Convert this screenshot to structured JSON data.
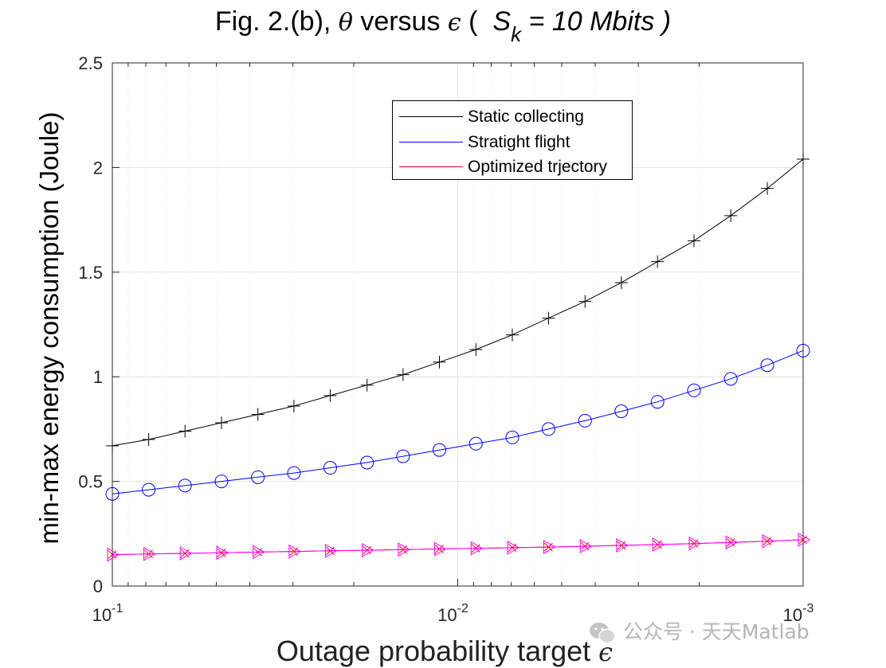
{
  "chart_data": {
    "type": "line",
    "title": {
      "prefix": "Fig. 2.(b), ",
      "theta": "θ",
      "mid": " versus ",
      "epsilon": "ϵ",
      "open": " (  ",
      "s": "S",
      "sub": "k",
      "rest": " = 10 Mbits )"
    },
    "xlabel": {
      "text": "Outage probability target ",
      "symbol": "ϵ"
    },
    "ylabel": "min-max energy consumption (Joule)",
    "xscale": "log",
    "xlim": [
      0.1,
      0.001
    ],
    "x_reversed": true,
    "ylim": [
      0,
      2.5
    ],
    "yticks": [
      0,
      0.5,
      1,
      1.5,
      2,
      2.5
    ],
    "ytick_labels": [
      "0",
      "0.5",
      "1",
      "1.5",
      "2",
      "2.5"
    ],
    "xticks": [
      {
        "value": 0.1,
        "base": "10",
        "exp": "-1"
      },
      {
        "value": 0.01,
        "base": "10",
        "exp": "-2"
      },
      {
        "value": 0.001,
        "base": "10",
        "exp": "-3"
      }
    ],
    "grid": true,
    "legend_position": "top-center",
    "x": [
      0.1,
      0.0785,
      0.0616,
      0.0483,
      0.0379,
      0.0298,
      0.0234,
      0.0183,
      0.0144,
      0.0113,
      0.00886,
      0.00695,
      0.00546,
      0.00428,
      0.00336,
      0.00264,
      0.00207,
      0.00162,
      0.00127,
      0.001
    ],
    "series": [
      {
        "name": "Static collecting",
        "color": "#000000",
        "marker": "plus",
        "values": [
          0.67,
          0.7,
          0.74,
          0.78,
          0.82,
          0.86,
          0.91,
          0.96,
          1.01,
          1.07,
          1.13,
          1.2,
          1.28,
          1.36,
          1.45,
          1.55,
          1.65,
          1.77,
          1.9,
          2.04
        ]
      },
      {
        "name": "Stratight flight",
        "color": "#0000ff",
        "marker": "circle",
        "values": [
          0.44,
          0.46,
          0.48,
          0.5,
          0.52,
          0.54,
          0.565,
          0.59,
          0.62,
          0.65,
          0.68,
          0.71,
          0.75,
          0.79,
          0.835,
          0.88,
          0.935,
          0.99,
          1.055,
          1.125
        ]
      },
      {
        "name": "Optimized trjectory",
        "color": "#ff0000",
        "marker": "x",
        "values": [
          0.15,
          0.153,
          0.156,
          0.159,
          0.162,
          0.165,
          0.168,
          0.171,
          0.174,
          0.177,
          0.18,
          0.183,
          0.186,
          0.19,
          0.194,
          0.198,
          0.203,
          0.208,
          0.214,
          0.221
        ]
      },
      {
        "name": "",
        "color": "#ff00ff",
        "marker": "triangle-right",
        "values": [
          0.15,
          0.153,
          0.156,
          0.159,
          0.162,
          0.165,
          0.168,
          0.171,
          0.174,
          0.177,
          0.18,
          0.183,
          0.186,
          0.19,
          0.194,
          0.198,
          0.203,
          0.208,
          0.214,
          0.221
        ]
      }
    ],
    "legend": [
      "Static collecting",
      "Stratight flight",
      "Optimized trjectory"
    ]
  },
  "watermark": {
    "text": "公众号 · 天天Matlab",
    "icon": "wechat-icon"
  }
}
